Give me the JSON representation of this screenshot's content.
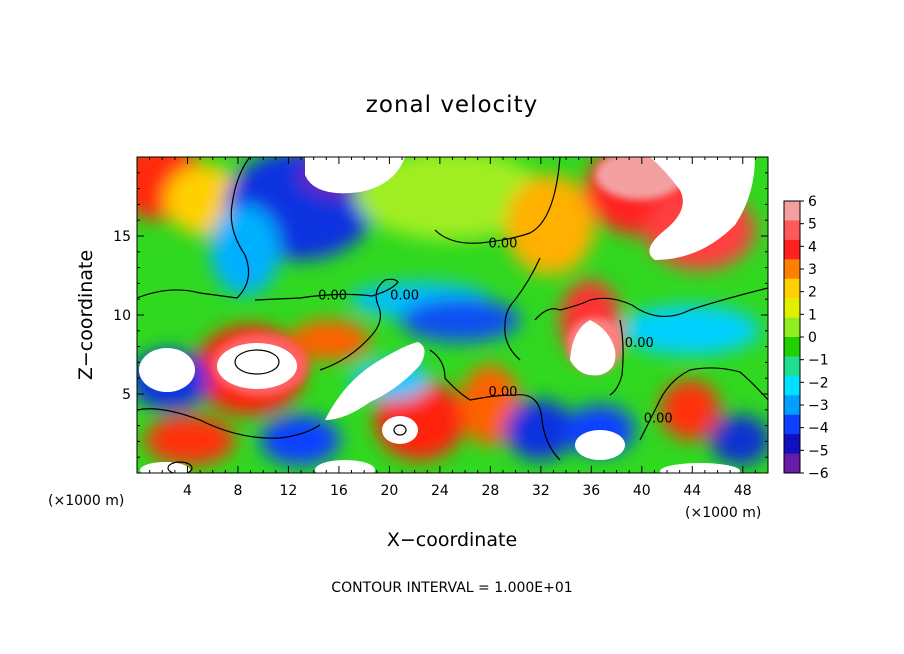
{
  "chart_data": {
    "type": "heatmap",
    "title": "zonal velocity",
    "xlabel": "X−coordinate",
    "ylabel": "Z−coordinate",
    "x_units_label": "(×1000 m)",
    "x_units_label_right": "(×1000 m)",
    "footer": "CONTOUR INTERVAL = 1.000E+01",
    "xlim": [
      0,
      50
    ],
    "ylim": [
      0,
      20
    ],
    "x_ticks": [
      4,
      8,
      12,
      16,
      20,
      24,
      28,
      32,
      36,
      40,
      44,
      48
    ],
    "x_tick_labels": [
      "4",
      "8",
      "12",
      "16",
      "20",
      "24",
      "28",
      "32",
      "36",
      "40",
      "44",
      "48"
    ],
    "y_ticks": [
      5,
      10,
      15
    ],
    "y_tick_labels": [
      "5",
      "10",
      "15"
    ],
    "colorbar": {
      "min": -6,
      "max": 6,
      "ticks": [
        6,
        5,
        4,
        3,
        2,
        1,
        0,
        -1,
        -2,
        -3,
        -4,
        -5,
        -6
      ],
      "tick_labels": [
        "6",
        "5",
        "4",
        "3",
        "2",
        "1",
        "0",
        "−1",
        "−2",
        "−3",
        "−4",
        "−5",
        "−6"
      ],
      "colors": [
        "#f4a0a0",
        "#ff5a5a",
        "#ff2020",
        "#ff8000",
        "#ffd000",
        "#e0f000",
        "#90ee20",
        "#20d000",
        "#20e090",
        "#00e0ff",
        "#00a0ff",
        "#1040ff",
        "#1010c0",
        "#6a1aa8"
      ]
    },
    "contour_labels": [
      {
        "text": "0.00",
        "x": 15.5,
        "y": 11.3
      },
      {
        "text": "0.00",
        "x": 21.2,
        "y": 11.3
      },
      {
        "text": "0.00",
        "x": 29.0,
        "y": 14.6
      },
      {
        "text": "0.00",
        "x": 29.0,
        "y": 5.2
      },
      {
        "text": "0.00",
        "x": 39.8,
        "y": 8.3
      },
      {
        "text": "0.00",
        "x": 41.3,
        "y": 3.5
      }
    ]
  }
}
